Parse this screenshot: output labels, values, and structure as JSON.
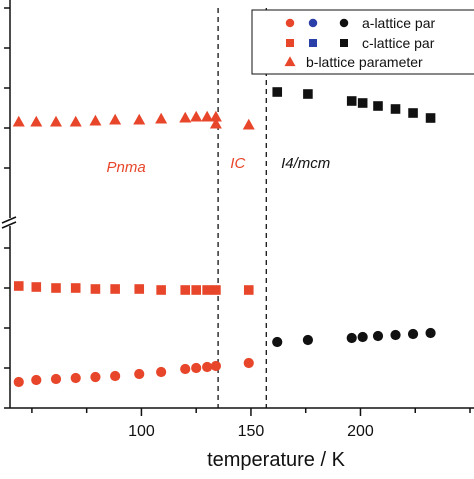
{
  "chart_data": {
    "type": "scatter",
    "xlabel": "temperature / K",
    "ylabel": "",
    "xlim": [
      40,
      250
    ],
    "ylim": [
      0,
      20
    ],
    "x_ticks": [
      100,
      150,
      200
    ],
    "y_break": 9.3,
    "grid": false,
    "legend_position": "top-right",
    "legend_entries": [
      {
        "text": "a-lattice par",
        "marker": "circle",
        "colors": [
          "#e8462a",
          "#2a3fa8",
          "#111111"
        ]
      },
      {
        "text": "c-lattice par",
        "marker": "square",
        "colors": [
          "#e8462a",
          "#2a3fa8",
          "#111111"
        ]
      },
      {
        "text": "b-lattice parameter",
        "marker": "triangle",
        "colors": [
          "#e8462a"
        ]
      }
    ],
    "phase_boundaries": [
      135,
      157
    ],
    "phase_labels": [
      {
        "text": "Pnma",
        "x": 93,
        "y": 11.8,
        "color": "#e8462a"
      },
      {
        "text": "IC",
        "x": 144,
        "y": 12.0,
        "color": "#e8462a"
      },
      {
        "text": "I4/mcm",
        "x": 175,
        "y": 12.0,
        "color": "#111111"
      }
    ],
    "colors": {
      "orthorhombic": "#e8462a",
      "tetragonal": "#111111",
      "axis": "#111111"
    },
    "series": [
      {
        "marker": "circle",
        "color": "#e8462a",
        "points": [
          [
            44,
            1.3
          ],
          [
            52,
            1.4
          ],
          [
            61,
            1.45
          ],
          [
            70,
            1.5
          ],
          [
            79,
            1.55
          ],
          [
            88,
            1.6
          ],
          [
            99,
            1.7
          ],
          [
            109,
            1.8
          ],
          [
            120,
            1.95
          ],
          [
            125,
            2.0
          ],
          [
            130,
            2.05
          ],
          [
            134,
            2.1
          ],
          [
            149,
            2.25
          ]
        ]
      },
      {
        "marker": "square",
        "color": "#e8462a",
        "points": [
          [
            44,
            6.1
          ],
          [
            52,
            6.05
          ],
          [
            61,
            6.0
          ],
          [
            70,
            6.0
          ],
          [
            79,
            5.95
          ],
          [
            88,
            5.95
          ],
          [
            99,
            5.95
          ],
          [
            109,
            5.9
          ],
          [
            120,
            5.9
          ],
          [
            125,
            5.9
          ],
          [
            130,
            5.9
          ],
          [
            134,
            5.9
          ],
          [
            149,
            5.9
          ]
        ]
      },
      {
        "marker": "triangle",
        "color": "#e8462a",
        "points": [
          [
            44,
            14.3
          ],
          [
            52,
            14.3
          ],
          [
            61,
            14.3
          ],
          [
            70,
            14.3
          ],
          [
            79,
            14.35
          ],
          [
            88,
            14.4
          ],
          [
            99,
            14.4
          ],
          [
            109,
            14.45
          ],
          [
            120,
            14.5
          ],
          [
            125,
            14.55
          ],
          [
            130,
            14.55
          ],
          [
            134,
            14.55
          ],
          [
            134,
            14.2
          ],
          [
            149,
            14.15
          ]
        ]
      },
      {
        "marker": "circle",
        "color": "#111111",
        "points": [
          [
            162,
            3.3
          ],
          [
            176,
            3.4
          ],
          [
            196,
            3.5
          ],
          [
            201,
            3.55
          ],
          [
            208,
            3.6
          ],
          [
            216,
            3.65
          ],
          [
            224,
            3.7
          ],
          [
            232,
            3.75
          ]
        ]
      },
      {
        "marker": "square",
        "color": "#111111",
        "points": [
          [
            162,
            15.8
          ],
          [
            176,
            15.7
          ],
          [
            196,
            15.35
          ],
          [
            201,
            15.25
          ],
          [
            208,
            15.1
          ],
          [
            216,
            14.95
          ],
          [
            224,
            14.75
          ],
          [
            232,
            14.5
          ]
        ]
      }
    ]
  }
}
